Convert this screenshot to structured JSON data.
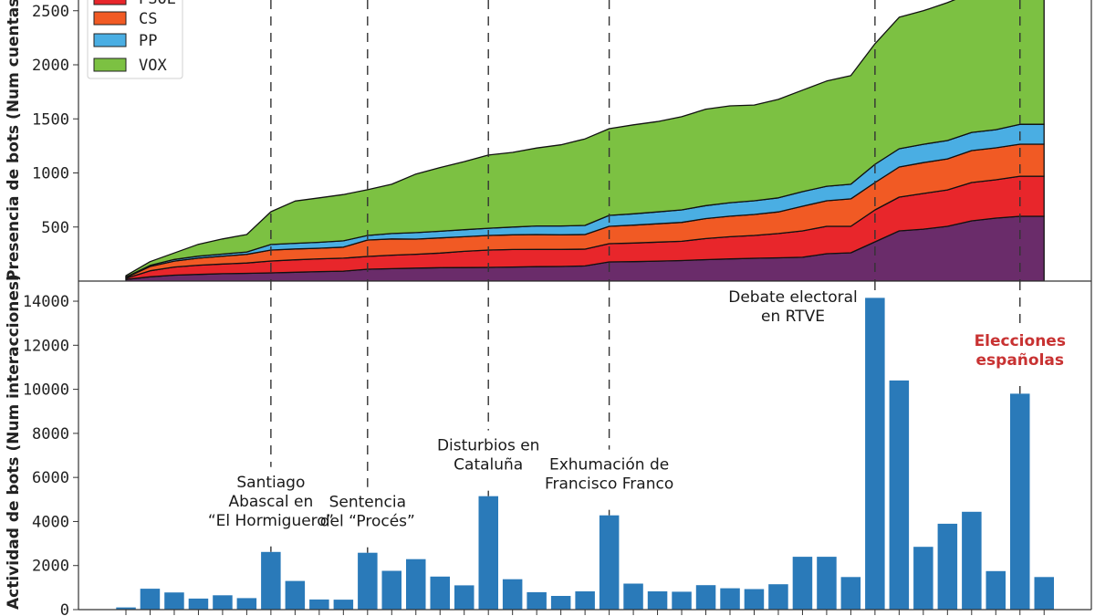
{
  "chart_data": [
    {
      "type": "area",
      "stacked": true,
      "title": "",
      "ylabel": "Presencia de bots (Num cuentas)",
      "xlabel": "",
      "ylim": [
        0,
        2600
      ],
      "yticks": [
        500,
        1000,
        1500,
        2000,
        2500
      ],
      "grid": false,
      "legend_position": "top-left",
      "legend": [
        {
          "label": "PSOE",
          "color": "#e8262b"
        },
        {
          "label": "CS",
          "color": "#f15a24"
        },
        {
          "label": "PP",
          "color": "#4aaee3"
        },
        {
          "label": "VOX",
          "color": "#7cc142"
        }
      ],
      "n_points": 39,
      "series": [
        {
          "name": "",
          "color": "#6a2c6a",
          "values": [
            15,
            40,
            55,
            62,
            68,
            72,
            76,
            82,
            88,
            92,
            110,
            115,
            120,
            124,
            125,
            127,
            130,
            133,
            135,
            140,
            177,
            180,
            185,
            190,
            198,
            205,
            211,
            215,
            220,
            253,
            262,
            363,
            464,
            480,
            506,
            557,
            582,
            599,
            599
          ]
        },
        {
          "name": "PSOE",
          "color": "#e8262b",
          "values": [
            10,
            55,
            75,
            85,
            90,
            95,
            110,
            115,
            118,
            120,
            118,
            125,
            128,
            135,
            150,
            160,
            162,
            160,
            158,
            155,
            169,
            172,
            175,
            178,
            195,
            205,
            211,
            225,
            244,
            253,
            244,
            295,
            312,
            330,
            337,
            354,
            355,
            371,
            371
          ]
        },
        {
          "name": "CS",
          "color": "#f15a24",
          "values": [
            8,
            40,
            55,
            65,
            72,
            80,
            101,
            100,
            98,
            102,
            152,
            150,
            140,
            140,
            135,
            135,
            136,
            137,
            135,
            135,
            160,
            165,
            170,
            175,
            185,
            190,
            194,
            200,
            228,
            237,
            254,
            253,
            279,
            285,
            287,
            296,
            295,
            296,
            296
          ]
        },
        {
          "name": "PP",
          "color": "#4aaee3",
          "values": [
            4,
            10,
            15,
            18,
            20,
            22,
            51,
            52,
            55,
            58,
            42,
            50,
            60,
            62,
            65,
            67,
            72,
            80,
            82,
            85,
            102,
            105,
            110,
            115,
            120,
            125,
            127,
            130,
            135,
            134,
            135,
            169,
            169,
            170,
            170,
            168,
            168,
            184,
            184
          ]
        },
        {
          "name": "VOX",
          "color": "#7cc142",
          "values": [
            13,
            35,
            60,
            110,
            140,
            161,
            303,
            391,
            411,
            428,
            423,
            455,
            542,
            589,
            630,
            676,
            690,
            720,
            750,
            800,
            801,
            823,
            835,
            862,
            892,
            895,
            885,
            910,
            938,
            973,
            1005,
            1115,
            1216,
            1235,
            1275,
            1290,
            1400,
            1450,
            1500
          ]
        }
      ],
      "vlines_at_index": [
        6,
        10,
        15,
        20,
        31,
        37
      ]
    },
    {
      "type": "bar",
      "title": "",
      "ylabel": "Actividad de bots (Num interacciones)",
      "xlabel": "",
      "ylim": [
        0,
        14800
      ],
      "yticks": [
        0,
        2000,
        4000,
        6000,
        8000,
        10000,
        12000,
        14000
      ],
      "yticklabels": [
        "0",
        "2000",
        "4000",
        "6000",
        "8000",
        "10000",
        "12000",
        "14000"
      ],
      "grid": false,
      "bar_color": "#2a7ab9",
      "values": [
        100,
        950,
        780,
        500,
        650,
        520,
        2620,
        1300,
        460,
        450,
        2580,
        1760,
        2290,
        1500,
        1100,
        5150,
        1380,
        790,
        620,
        830,
        4280,
        1180,
        830,
        810,
        1110,
        970,
        930,
        1150,
        2400,
        2400,
        1480,
        14150,
        10400,
        2850,
        3900,
        4440,
        1750,
        9800,
        1480
      ],
      "annotations": [
        {
          "index": 6,
          "lines": [
            "Santiago",
            "Abascal en",
            "“El Hormiguero”"
          ],
          "color": "#1a1a1a"
        },
        {
          "index": 10,
          "lines": [
            "Sentencia",
            "del “Procés”"
          ],
          "color": "#1a1a1a"
        },
        {
          "index": 15,
          "lines": [
            "Disturbios en",
            "Cataluña"
          ],
          "color": "#1a1a1a"
        },
        {
          "index": 20,
          "lines": [
            "Exhumación de",
            "Francisco Franco"
          ],
          "color": "#1a1a1a"
        },
        {
          "index": 31,
          "lines": [
            "Debate electoral",
            "en RTVE"
          ],
          "color": "#1a1a1a"
        },
        {
          "index": 37,
          "lines": [
            "Elecciones",
            "españolas"
          ],
          "color": "#c83232"
        }
      ]
    }
  ]
}
